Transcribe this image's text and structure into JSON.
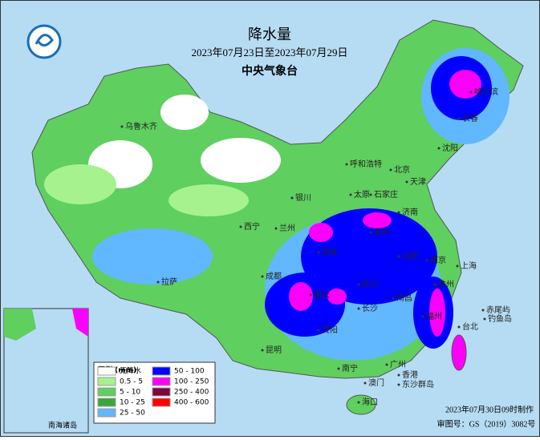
{
  "header": {
    "title": "降水量",
    "date_range": "2023年07月23日至2023年07月29日",
    "agency": "中央气象台"
  },
  "legend": {
    "title": "图例 (mm)",
    "items": [
      {
        "label": "无降水",
        "color": "#ffffff"
      },
      {
        "label": "0.5 - 5",
        "color": "#a6f28f"
      },
      {
        "label": "5 - 10",
        "color": "#5fcf5f"
      },
      {
        "label": "10 - 25",
        "color": "#3aa63a"
      },
      {
        "label": "25 - 50",
        "color": "#61b8ff"
      },
      {
        "label": "50 - 100",
        "color": "#0000fe"
      },
      {
        "label": "100 - 250",
        "color": "#fa00fa"
      },
      {
        "label": "250 - 400",
        "color": "#800040"
      },
      {
        "label": "400 - 600",
        "color": "#ff0000"
      }
    ]
  },
  "cities": [
    "乌鲁木齐",
    "拉萨",
    "西宁",
    "兰州",
    "银川",
    "呼和浩特",
    "太原",
    "石家庄",
    "北京",
    "天津",
    "济南",
    "郑州",
    "西安",
    "成都",
    "重庆",
    "贵阳",
    "昆明",
    "长沙",
    "武汉",
    "合肥",
    "南京",
    "上海",
    "杭州",
    "福州",
    "南昌",
    "广州",
    "香港",
    "澳门",
    "南宁",
    "海口",
    "台北",
    "长春",
    "沈阳",
    "哈尔滨",
    "钓鱼岛",
    "赤尾屿",
    "东沙群岛"
  ],
  "inset": {
    "label": "南海诸岛"
  },
  "footer": {
    "made": "2023年07月30日09时制作",
    "approval": "审图号：GS（2019）3082号"
  }
}
